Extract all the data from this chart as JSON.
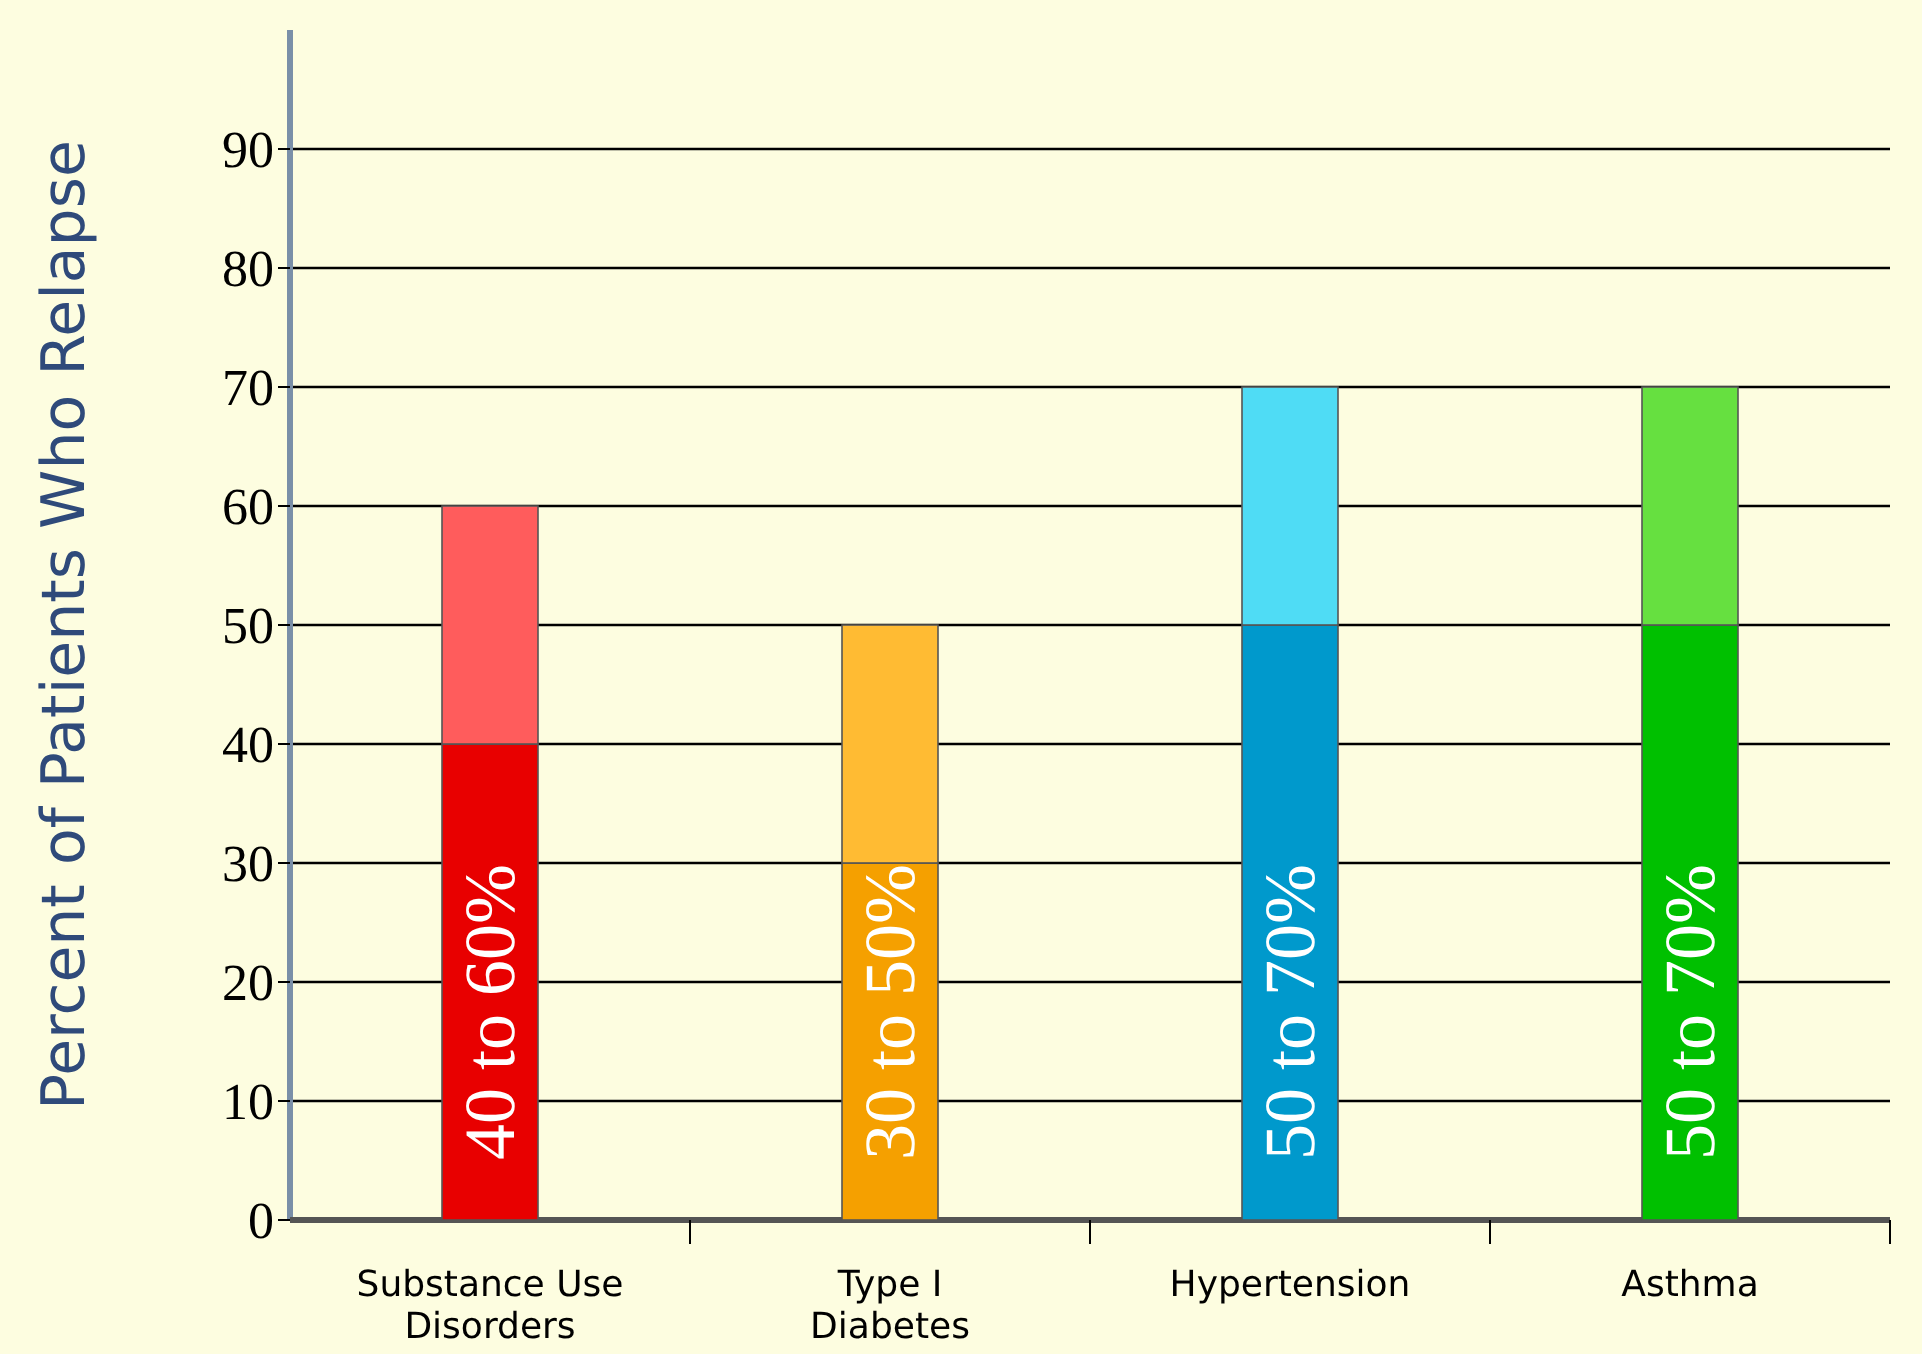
{
  "chart_data": {
    "type": "bar",
    "stacked": true,
    "ylabel": "Percent of Patients Who Relapse",
    "categories": [
      "Substance Use Disorders",
      "Type I Diabetes",
      "Hypertension",
      "Asthma"
    ],
    "series": [
      {
        "colors": [
          "#e80000",
          "#f5a000",
          "#0099cc",
          "#00c000"
        ],
        "values": [
          40,
          30,
          50,
          50
        ],
        "value_labels": [
          "40 to 60%",
          "30 to 50%",
          "50 to 70%",
          "50 to 70%"
        ]
      },
      {
        "colors": [
          "#ff5c5c",
          "#ffbb33",
          "#4fdcf5",
          "#66e040"
        ],
        "values": [
          20,
          20,
          20,
          20
        ]
      }
    ],
    "ylim": [
      0,
      100
    ],
    "yticks": [
      0,
      10,
      20,
      30,
      40,
      50,
      60,
      70,
      80,
      90
    ],
    "grid": "y"
  }
}
